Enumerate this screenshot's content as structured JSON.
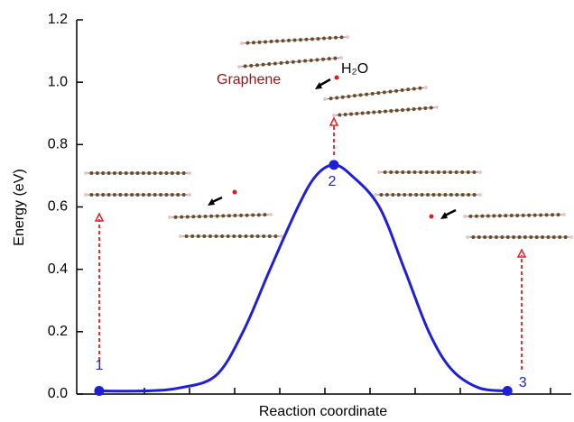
{
  "chart_data": {
    "type": "line",
    "x_label": "Reaction coordinate",
    "y_label": "Energy (eV)",
    "x": [
      0.5,
      1.5,
      2.3,
      3.1,
      3.7,
      4.3,
      4.92,
      5.32,
      5.72,
      6.12,
      6.73,
      7.29,
      7.83,
      8.33,
      8.94,
      9.58
    ],
    "series": [
      {
        "color": "#1f1fd6",
        "values": [
          0.01,
          0.01,
          0.02,
          0.06,
          0.2,
          0.4,
          0.6,
          0.7,
          0.735,
          0.7,
          0.6,
          0.4,
          0.2,
          0.08,
          0.02,
          0.01
        ]
      }
    ],
    "points": {
      "x": [
        0.5,
        5.72,
        9.58
      ],
      "values": [
        0.01,
        0.735,
        0.01
      ],
      "labels": [
        "1",
        "2",
        "3"
      ],
      "color": "#1f1fd6"
    },
    "annotations": [
      "Graphene",
      "H₂O"
    ],
    "xlim": [
      0,
      11
    ],
    "ylim": [
      0,
      1.2
    ],
    "yticks": [
      {
        "value": 0,
        "label": "0.0"
      },
      0.2,
      0.4,
      0.6,
      0.8,
      {
        "value": 1,
        "label": "1.0"
      },
      1.2
    ]
  }
}
